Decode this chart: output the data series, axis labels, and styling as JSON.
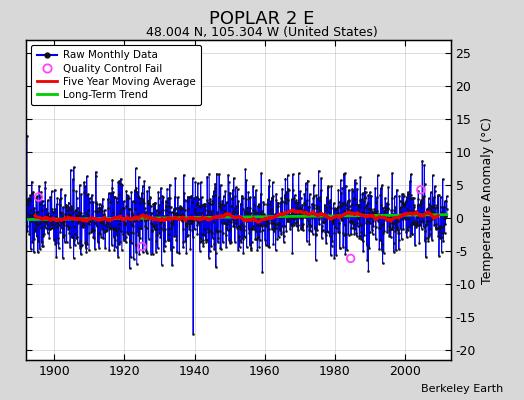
{
  "title": "POPLAR 2 E",
  "subtitle": "48.004 N, 105.304 W (United States)",
  "ylabel": "Temperature Anomaly (°C)",
  "xlabel_ticks": [
    1900,
    1920,
    1940,
    1960,
    1980,
    2000
  ],
  "ylim": [
    -21.5,
    27
  ],
  "yticks": [
    -20,
    -15,
    -10,
    -5,
    0,
    5,
    10,
    15,
    20,
    25
  ],
  "year_start": 1892,
  "year_end": 2012,
  "background_color": "#d8d8d8",
  "plot_bg_color": "#ffffff",
  "line_color": "#0000ee",
  "ma_color": "#ee0000",
  "trend_color": "#00cc00",
  "qc_color": "#ff44ff",
  "attribution": "Berkeley Earth",
  "seed": 137,
  "figsize": [
    5.24,
    4.0
  ],
  "dpi": 100
}
